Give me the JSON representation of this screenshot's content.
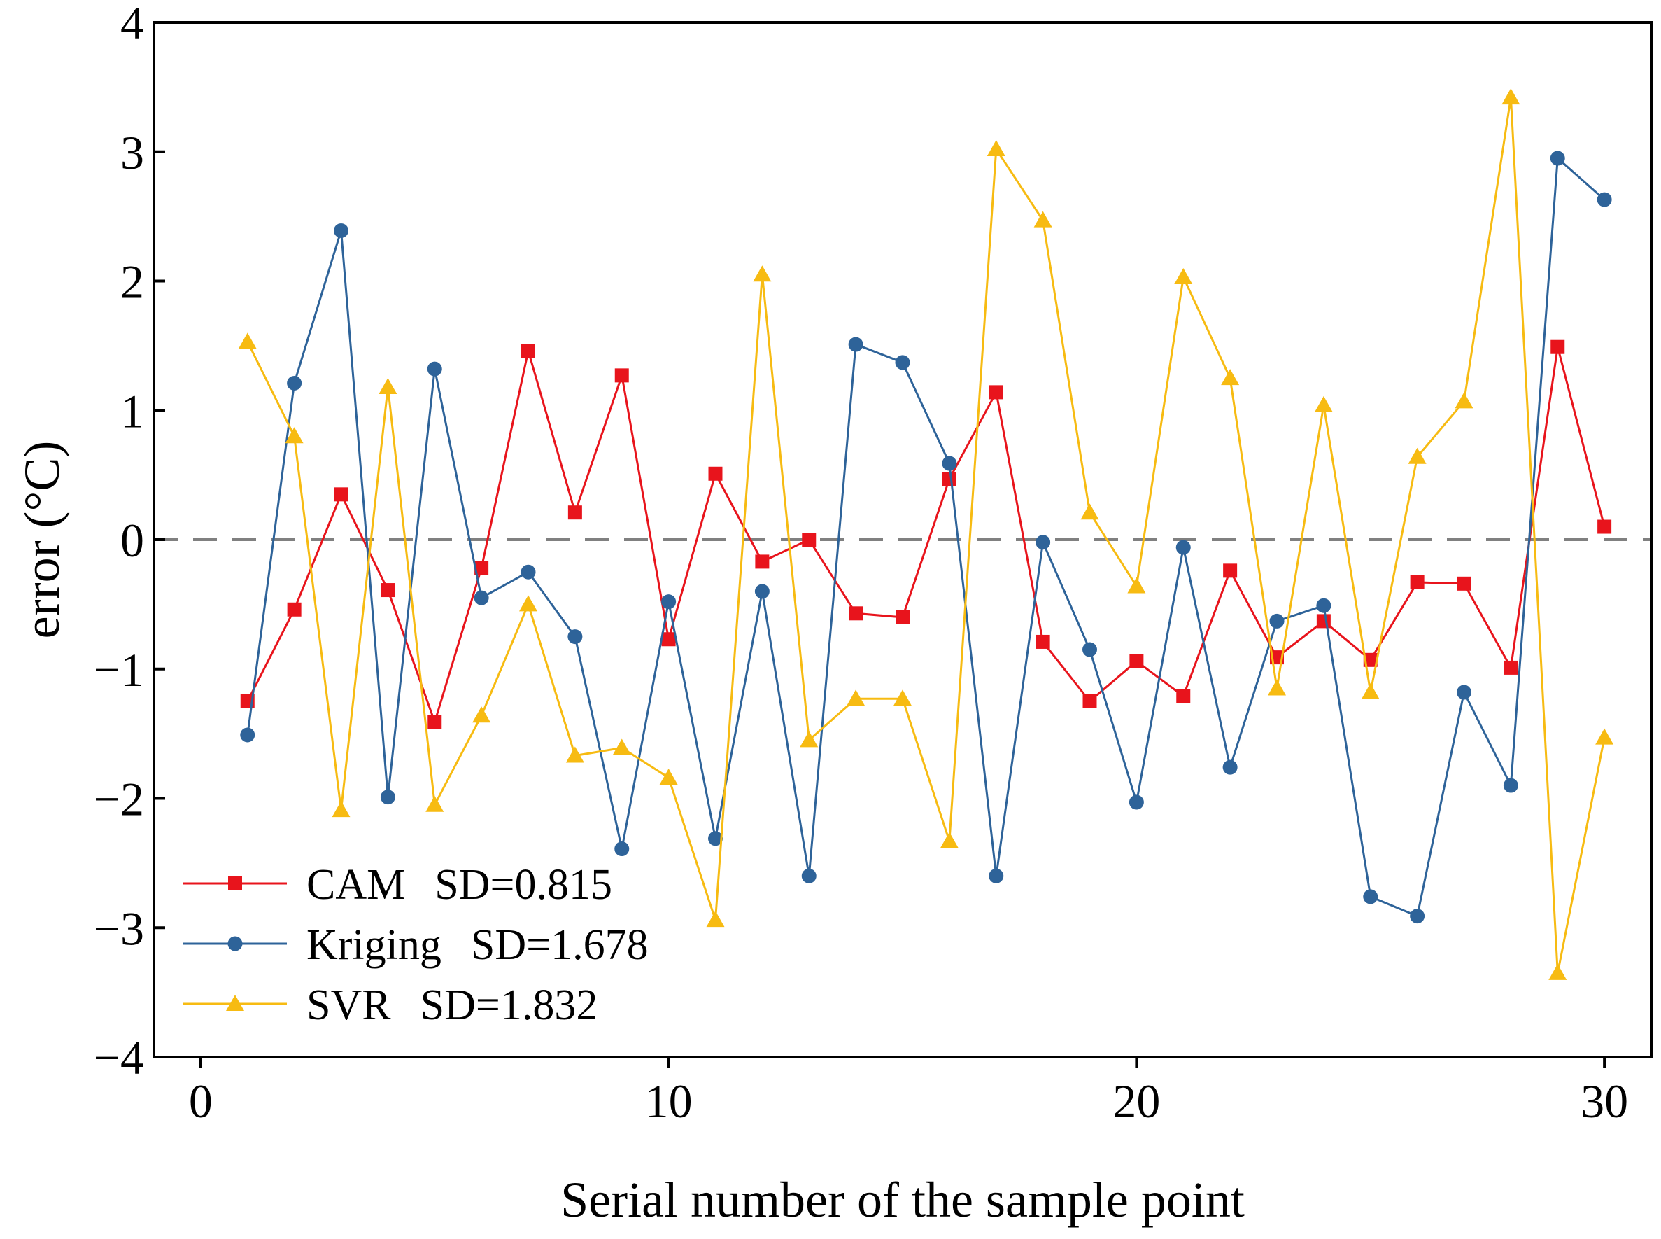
{
  "chart_data": {
    "type": "line",
    "title": "",
    "xlabel": "Serial number of the sample point",
    "ylabel": "error (°C)",
    "xlim": [
      -1,
      31
    ],
    "ylim": [
      -4,
      4
    ],
    "xticks": [
      0,
      10,
      20,
      30
    ],
    "yticks": [
      -4,
      -3,
      -2,
      -1,
      0,
      1,
      2,
      3,
      4
    ],
    "xtick_labels": [
      "0",
      "10",
      "20",
      "30"
    ],
    "ytick_labels": [
      "−4",
      "−3",
      "−2",
      "−1",
      "0",
      "1",
      "2",
      "3",
      "4"
    ],
    "grid": false,
    "legend_position": "bottom-left",
    "reference_line": {
      "y": 0,
      "style": "dashed",
      "color": "#808080"
    },
    "x": [
      1,
      2,
      3,
      4,
      5,
      6,
      7,
      8,
      9,
      10,
      11,
      12,
      13,
      14,
      15,
      16,
      17,
      18,
      19,
      20,
      21,
      22,
      23,
      24,
      25,
      26,
      27,
      28,
      29,
      30
    ],
    "series": [
      {
        "name": "CAM",
        "legend_text": "SD=0.815",
        "color": "#e8141c",
        "marker": "square",
        "values": [
          -1.25,
          -0.54,
          0.35,
          -0.39,
          -1.41,
          -0.22,
          1.46,
          0.21,
          1.27,
          -0.77,
          0.51,
          -0.17,
          0.0,
          -0.57,
          -0.6,
          0.47,
          1.14,
          -0.79,
          -1.25,
          -0.94,
          -1.21,
          -0.24,
          -0.91,
          -0.63,
          -0.93,
          -0.33,
          -0.34,
          -0.99,
          1.49,
          0.1
        ]
      },
      {
        "name": "Kriging",
        "legend_text": "SD=1.678",
        "color": "#2e6399",
        "marker": "circle",
        "values": [
          -1.51,
          1.21,
          2.39,
          -1.99,
          1.32,
          -0.45,
          -0.25,
          -0.75,
          -2.39,
          -0.48,
          -2.31,
          -0.4,
          -2.6,
          1.51,
          1.37,
          0.59,
          -2.6,
          -0.02,
          -0.85,
          -2.03,
          -0.06,
          -1.76,
          -0.63,
          -0.51,
          -2.76,
          -2.91,
          -1.18,
          -1.9,
          2.95,
          2.63
        ]
      },
      {
        "name": "SVR",
        "legend_text": "SD=1.832",
        "color": "#f7bb12",
        "marker": "triangle",
        "values": [
          1.53,
          0.8,
          -2.09,
          1.18,
          -2.05,
          -1.36,
          -0.5,
          -1.67,
          -1.61,
          -1.84,
          -2.94,
          2.05,
          -1.55,
          -1.23,
          -1.23,
          -2.33,
          3.02,
          2.47,
          0.21,
          -0.36,
          2.03,
          1.25,
          -1.15,
          1.04,
          -1.18,
          0.64,
          1.07,
          3.42,
          -3.35,
          -1.53
        ]
      }
    ]
  }
}
